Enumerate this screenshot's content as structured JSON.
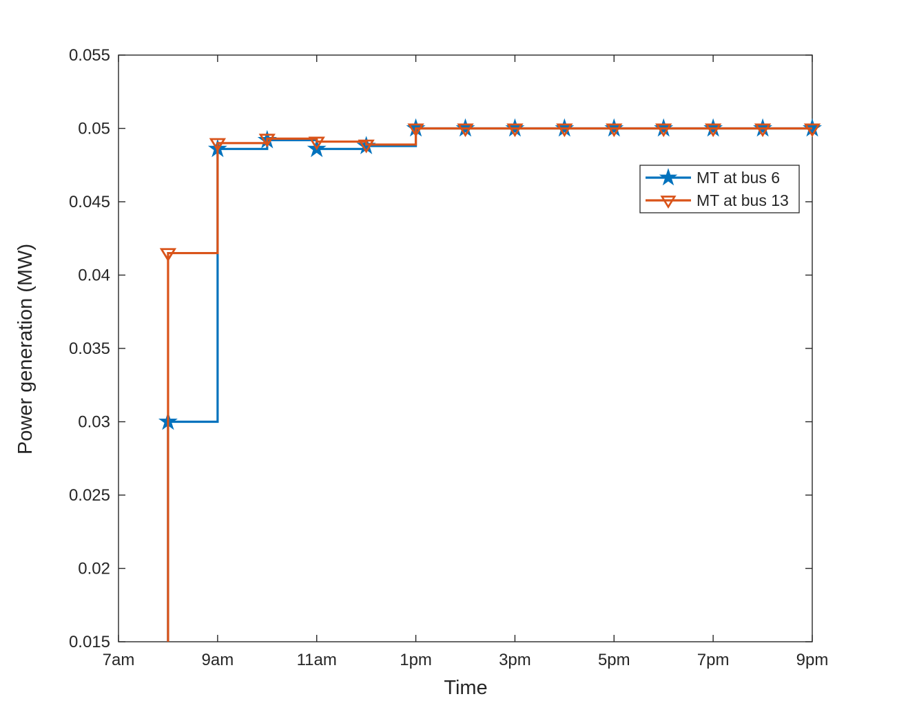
{
  "figure": {
    "background": "#ffffff",
    "axis_color": "#262626",
    "text_color": "#262626"
  },
  "chart_data": {
    "type": "line",
    "subtype": "stairs",
    "title": "",
    "xlabel": "Time",
    "ylabel": "Power generation (MW)",
    "grid": false,
    "box": true,
    "xlim_hours_after_7am": [
      0,
      14
    ],
    "ylim": [
      0.015,
      0.055
    ],
    "xticks": [
      {
        "h": 0,
        "label": "7am"
      },
      {
        "h": 2,
        "label": "9am"
      },
      {
        "h": 4,
        "label": "11am"
      },
      {
        "h": 6,
        "label": "1pm"
      },
      {
        "h": 8,
        "label": "3pm"
      },
      {
        "h": 10,
        "label": "5pm"
      },
      {
        "h": 12,
        "label": "7pm"
      },
      {
        "h": 14,
        "label": "9pm"
      }
    ],
    "yticks": [
      {
        "v": 0.015,
        "label": "0.015"
      },
      {
        "v": 0.02,
        "label": "0.02"
      },
      {
        "v": 0.025,
        "label": "0.025"
      },
      {
        "v": 0.03,
        "label": "0.03"
      },
      {
        "v": 0.035,
        "label": "0.035"
      },
      {
        "v": 0.04,
        "label": "0.04"
      },
      {
        "v": 0.045,
        "label": "0.045"
      },
      {
        "v": 0.05,
        "label": "0.05"
      },
      {
        "v": 0.055,
        "label": "0.055"
      }
    ],
    "x_point_labels": [
      "8am",
      "9am",
      "10am",
      "11am",
      "12pm",
      "1pm",
      "2pm",
      "3pm",
      "4pm",
      "5pm",
      "6pm",
      "7pm",
      "8pm",
      "9pm"
    ],
    "x_point_hours_after_7am": [
      1,
      2,
      3,
      4,
      5,
      6,
      7,
      8,
      9,
      10,
      11,
      12,
      13,
      14
    ],
    "rises_from_axis_bottom_at_first_point": true,
    "series": [
      {
        "name": "MT at bus 6",
        "color": "#0072BD",
        "marker": "pentagram",
        "marker_filled": true,
        "values": [
          0.03,
          0.0486,
          0.0492,
          0.0486,
          0.0488,
          0.05,
          0.05,
          0.05,
          0.05,
          0.05,
          0.05,
          0.05,
          0.05,
          0.05
        ]
      },
      {
        "name": "MT at bus 13",
        "color": "#D95319",
        "marker": "triangle-down",
        "marker_filled": false,
        "values": [
          0.0415,
          0.049,
          0.0493,
          0.0491,
          0.0489,
          0.05,
          0.05,
          0.05,
          0.05,
          0.05,
          0.05,
          0.05,
          0.05,
          0.05
        ]
      }
    ],
    "legend": {
      "position": "inside-upper-right",
      "entries": [
        "MT at bus 6",
        "MT at bus 13"
      ]
    }
  }
}
